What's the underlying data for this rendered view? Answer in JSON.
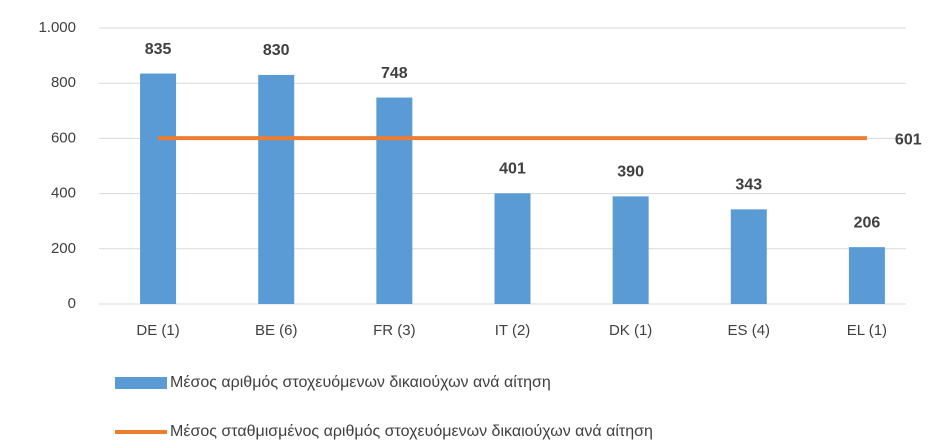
{
  "chart_data": {
    "type": "bar",
    "categories": [
      "DE (1)",
      "BE (6)",
      "FR (3)",
      "IT (2)",
      "DK (1)",
      "ES (4)",
      "EL (1)"
    ],
    "series": [
      {
        "name": "Μέσος αριθμός στοχευόμενων δικαιούχων ανά αίτηση",
        "type": "bar",
        "color": "#5b9bd5",
        "values": [
          835,
          830,
          748,
          401,
          390,
          343,
          206
        ]
      },
      {
        "name": "Μέσος σταθμισμένος αριθμός στοχευόμενων δικαιούχων ανά αίτηση",
        "type": "line",
        "color": "#ed7d31",
        "values": [
          601,
          601,
          601,
          601,
          601,
          601,
          601
        ]
      }
    ],
    "ylim": [
      0,
      1000
    ],
    "yticks": [
      0,
      200,
      400,
      600,
      800,
      {
        "value": 1000,
        "label": "1.000"
      }
    ],
    "grid": true
  }
}
